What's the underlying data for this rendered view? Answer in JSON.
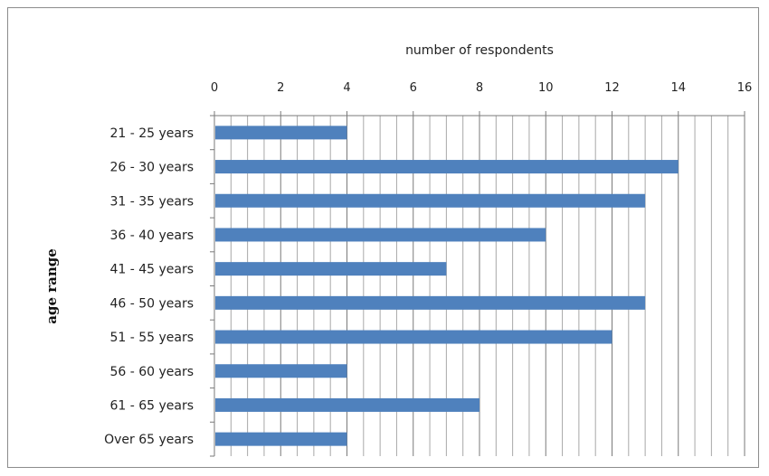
{
  "chart_data": {
    "type": "bar",
    "orientation": "horizontal",
    "xlabel": "number of respondents",
    "ylabel": "age range",
    "xlim": [
      0,
      16
    ],
    "x_ticks": [
      "0",
      "2",
      "4",
      "6",
      "8",
      "10",
      "12",
      "14",
      "16"
    ],
    "grid": "vertical minor gridlines every 0.5",
    "x_axis_position": "top",
    "bar_color": "#4f81bd",
    "categories": [
      "21 - 25 years",
      "26 - 30 years",
      "31 - 35 years",
      "36 - 40 years",
      "41 - 45 years",
      "46 - 50 years",
      "51 - 55 years",
      "56 - 60 years",
      "61 - 65 years",
      "Over 65 years"
    ],
    "values": [
      4,
      14,
      13,
      10,
      7,
      13,
      12,
      4,
      8,
      4
    ]
  }
}
